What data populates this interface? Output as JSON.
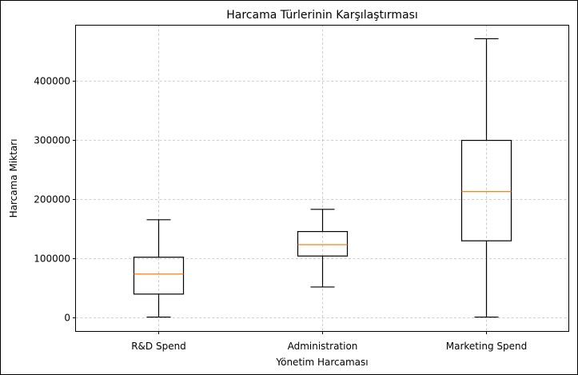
{
  "chart_data": {
    "type": "box",
    "title": "Harcama Türlerinin Karşılaştırması",
    "xlabel": "Yönetim Harcaması",
    "ylabel": "Harcama Miktarı",
    "categories": [
      "R&D Spend",
      "Administration",
      "Marketing Spend"
    ],
    "boxes": [
      {
        "name": "R&D Spend",
        "whisker_low": 0,
        "q1": 39000,
        "median": 73000,
        "q3": 101500,
        "whisker_high": 165000
      },
      {
        "name": "Administration",
        "whisker_low": 51000,
        "q1": 103500,
        "median": 122700,
        "q3": 145000,
        "whisker_high": 182600
      },
      {
        "name": "Marketing Spend",
        "whisker_low": 0,
        "q1": 129300,
        "median": 212700,
        "q3": 299500,
        "whisker_high": 471800
      }
    ],
    "y_ticks": [
      0,
      100000,
      200000,
      300000,
      400000
    ],
    "ylim": [
      -23600,
      495400
    ],
    "grid": true,
    "colors": {
      "box_edge": "#000000",
      "median": "#ff7f0e",
      "grid": "#b0b0b0"
    }
  }
}
